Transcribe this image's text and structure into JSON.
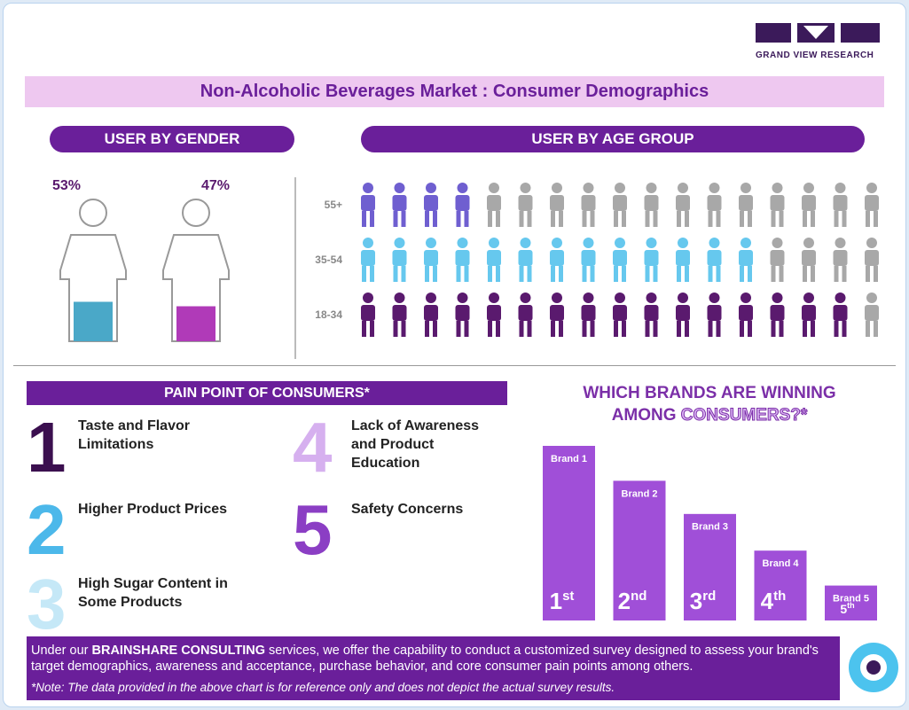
{
  "logo": "GRAND VIEW RESEARCH",
  "title": "Non-Alcoholic Beverages Market : Consumer Demographics",
  "gender": {
    "heading": "USER BY GENDER",
    "male": {
      "value": 53,
      "label": "53%",
      "color": "#4aa8c8"
    },
    "female": {
      "value": 47,
      "label": "47%",
      "color": "#b03ab8"
    }
  },
  "age": {
    "heading": "USER BY AGE GROUP",
    "gray": "#a8a8a8",
    "groups": [
      {
        "label": "55+",
        "colored": 4,
        "total": 17,
        "color": "#6f5fd0"
      },
      {
        "label": "35-54",
        "colored": 13,
        "total": 17,
        "color": "#66c8ee"
      },
      {
        "label": "18-34",
        "colored": 16,
        "total": 17,
        "color": "#5a1a6e"
      }
    ]
  },
  "pain": {
    "heading": "PAIN POINT OF CONSUMERS*",
    "items": [
      {
        "number": "1",
        "text": "Taste and Flavor Limitations",
        "color": "#3b0f4f"
      },
      {
        "number": "2",
        "text": "Higher Product Prices",
        "color": "#4cb8ea"
      },
      {
        "number": "3",
        "text": "High Sugar Content in Some Products",
        "color": "#c5e8f7"
      },
      {
        "number": "4",
        "text": "Lack of Awareness and Product Education",
        "color": "#d6b0ef"
      },
      {
        "number": "5",
        "text": "Safety Concerns",
        "color": "#8b3ec4"
      }
    ]
  },
  "brands": {
    "heading_1": "WHICH BRANDS ARE WINNING",
    "heading_2a": "AMONG",
    "heading_2b": "CONSUMERS?*",
    "color": "#a04fd8",
    "items": [
      {
        "name": "Brand 1",
        "rank": "1",
        "suffix": "st",
        "value": 100
      },
      {
        "name": "Brand 2",
        "rank": "2",
        "suffix": "nd",
        "value": 80
      },
      {
        "name": "Brand 3",
        "rank": "3",
        "suffix": "rd",
        "value": 61
      },
      {
        "name": "Brand 4",
        "rank": "4",
        "suffix": "th",
        "value": 40
      },
      {
        "name": "Brand 5",
        "rank": "5",
        "suffix": "th",
        "value": 20
      }
    ]
  },
  "footer": {
    "text_1": "Under our",
    "bold": "BRAINSHARE CONSULTING",
    "text_2": "services, we offer the capability to conduct a customized survey designed to assess your brand's target demographics, awareness and acceptance, purchase behavior, and core consumer pain points among others.",
    "note": "*Note: The data provided in the above chart is for reference only and does not depict the actual survey results."
  }
}
